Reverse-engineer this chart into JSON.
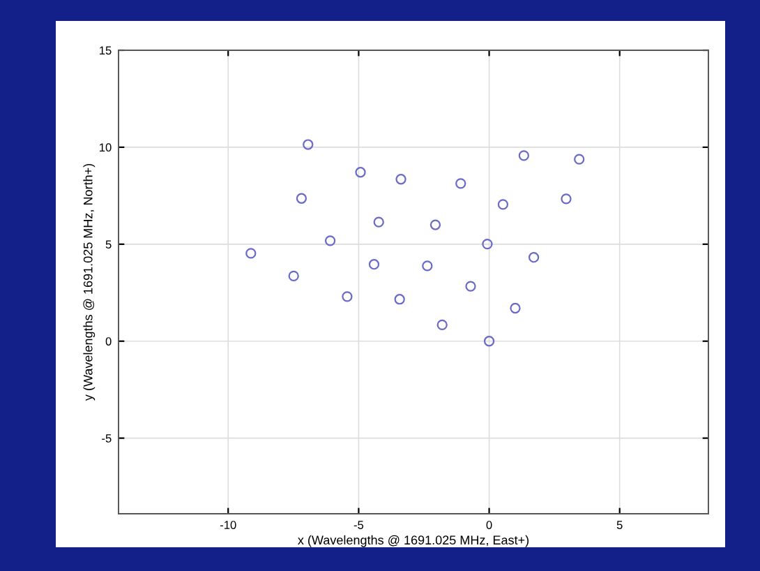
{
  "chart_data": {
    "type": "scatter",
    "xlabel": "x (Wavelengths @ 1691.025 MHz, East+)",
    "ylabel": "y (Wavelengths @ 1691.025 MHz, North+)",
    "x": [
      -6.94,
      -7.19,
      -9.13,
      -7.49,
      -6.09,
      -5.44,
      -4.93,
      -4.23,
      -4.41,
      -3.38,
      -3.43,
      -2.37,
      -2.06,
      -1.09,
      -1.8,
      -0.71,
      -0.07,
      0,
      0.53,
      1.33,
      1.0,
      1.71,
      2.95,
      3.45
    ],
    "series": [
      {
        "color": "#6a6ac8",
        "values": [
          10.14,
          7.36,
          4.53,
          3.36,
          5.18,
          2.3,
          8.71,
          6.14,
          3.96,
          8.35,
          2.16,
          3.88,
          6.0,
          8.13,
          0.84,
          2.83,
          5.01,
          0,
          7.05,
          9.57,
          1.7,
          4.32,
          7.34,
          9.38
        ]
      }
    ],
    "marker": "circle",
    "xlim": [
      -14.2,
      8.4
    ],
    "ylim": [
      -8.9,
      15
    ],
    "xticks": [
      -10,
      -5,
      0,
      5
    ],
    "yticks": [
      -5,
      0,
      5,
      10,
      15
    ],
    "grid": true
  }
}
